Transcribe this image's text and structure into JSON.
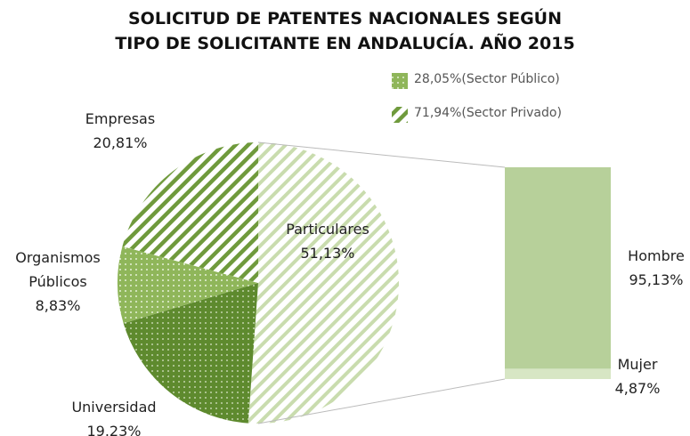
{
  "chart_data": {
    "type": "pie_of_bar",
    "title": [
      "SOLICITUD DE PATENTES NACIONALES SEGÚN",
      "TIPO DE SOLICITANTE EN ANDALUCÍA.  AÑO 2015"
    ],
    "legend": [
      "28,05%(Sector Público)",
      "71,94%(Sector Privado)"
    ],
    "categories": [
      "Particulares",
      "Universidad",
      "Organismos Públicos",
      "Empresas"
    ],
    "values": [
      51.13,
      19.23,
      8.83,
      20.81
    ],
    "value_labels": [
      "51,13%",
      "19.23%",
      "8,83%",
      "20,81%"
    ],
    "bar": {
      "categories": [
        "Hombre",
        "Mujer"
      ],
      "values": [
        95.13,
        4.87
      ],
      "value_labels": [
        "95,13%",
        "4,87%"
      ],
      "colors": [
        "#b7d09a",
        "#d7e6c4"
      ]
    }
  }
}
